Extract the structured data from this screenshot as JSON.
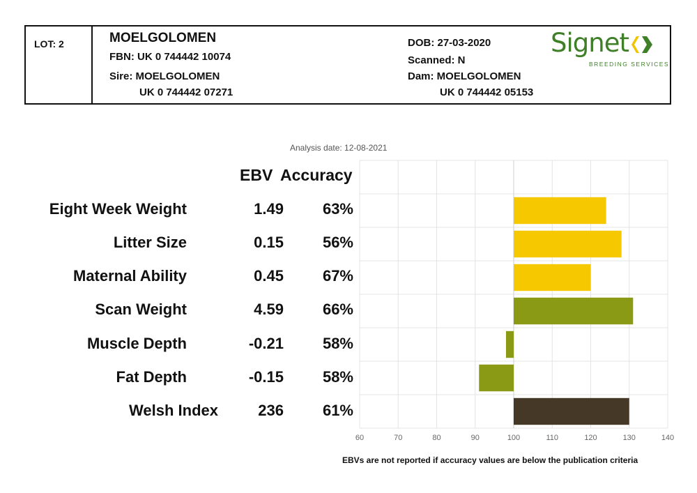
{
  "header": {
    "lot": "LOT: 2",
    "name": "MOELGOLOMEN",
    "fbn": "FBN: UK 0 744442 10074",
    "sire_line": "Sire: MOELGOLOMEN",
    "sire_id": "UK 0 744442 07271",
    "dob": "DOB: 27-03-2020",
    "scanned": "Scanned: N",
    "dam_line": "Dam: MOELGOLOMEN",
    "dam_id": "UK 0 744442 05153"
  },
  "logo": {
    "word": "Signet",
    "tagline": "BREEDING SERVICES",
    "color": "#3f7f28",
    "accent_color": "#f2c400"
  },
  "analysis_date": "Analysis date: 12-08-2021",
  "columns": {
    "ebv": "EBV",
    "accuracy": "Accuracy"
  },
  "footnote": "EBVs are not reported if accuracy values are below the publication criteria",
  "chart_data": {
    "type": "bar",
    "orientation": "horizontal",
    "baseline": 100,
    "xlim": [
      60,
      140
    ],
    "xticks": [
      "60",
      "70",
      "80",
      "90",
      "100",
      "110",
      "120",
      "130",
      "140"
    ],
    "grid": true,
    "categories": [
      "Eight Week Weight",
      "Litter Size",
      "Maternal Ability",
      "Scan Weight",
      "Muscle Depth",
      "Fat Depth",
      "Welsh Index"
    ],
    "values": [
      124,
      128,
      120,
      131,
      98,
      91,
      130
    ],
    "ebv": [
      "1.49",
      "0.15",
      "0.45",
      "4.59",
      "-0.21",
      "-0.15",
      "236"
    ],
    "accuracy": [
      "63%",
      "56%",
      "67%",
      "66%",
      "58%",
      "58%",
      "61%"
    ],
    "colors": [
      "#f5c800",
      "#f5c800",
      "#f5c800",
      "#8a9a15",
      "#8a9a15",
      "#8a9a15",
      "#463826"
    ]
  }
}
